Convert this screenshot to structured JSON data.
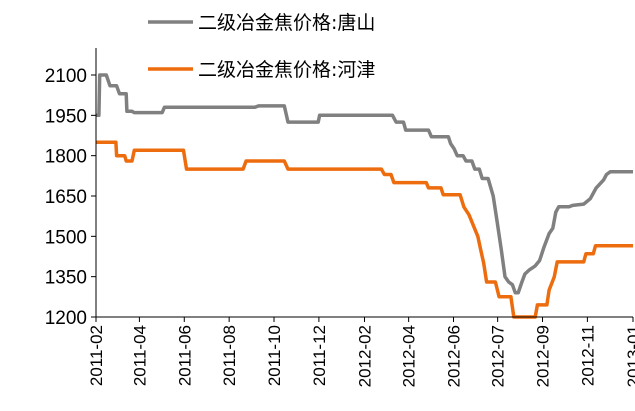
{
  "chart_data": {
    "type": "line",
    "title": "",
    "xlabel": "",
    "ylabel": "",
    "ylim": [
      1200,
      2100
    ],
    "yticks": [
      1200,
      1350,
      1500,
      1650,
      1800,
      1950,
      2100
    ],
    "x_range": [
      "2011-02-01",
      "2013-01-31"
    ],
    "x_ticks": [
      "2011-02",
      "2011-04",
      "2011-06",
      "2011-08",
      "2011-10",
      "2011-12",
      "2012-02",
      "2012-04",
      "2012-06",
      "2012-07",
      "2012-09",
      "2012-11",
      "2013-01"
    ],
    "x_tick_dates": [
      "2011-02-01",
      "2011-04-01",
      "2011-06-01",
      "2011-08-01",
      "2011-10-01",
      "2011-12-01",
      "2012-02-01",
      "2012-04-01",
      "2012-06-01",
      "2012-07-31",
      "2012-09-30",
      "2012-11-30",
      "2013-01-31"
    ],
    "legend_position": "top",
    "grid": false,
    "series": [
      {
        "name": "二级冶金焦价格:唐山",
        "color": "#808080",
        "points": [
          [
            "2011-02-01",
            1950
          ],
          [
            "2011-02-05",
            1950
          ],
          [
            "2011-02-06",
            2100
          ],
          [
            "2011-02-15",
            2100
          ],
          [
            "2011-02-20",
            2060
          ],
          [
            "2011-03-01",
            2060
          ],
          [
            "2011-03-05",
            2030
          ],
          [
            "2011-03-14",
            2030
          ],
          [
            "2011-03-15",
            1965
          ],
          [
            "2011-03-22",
            1965
          ],
          [
            "2011-03-25",
            1960
          ],
          [
            "2011-05-02",
            1960
          ],
          [
            "2011-05-05",
            1980
          ],
          [
            "2011-09-05",
            1980
          ],
          [
            "2011-09-10",
            1985
          ],
          [
            "2011-10-15",
            1985
          ],
          [
            "2011-10-20",
            1925
          ],
          [
            "2011-11-30",
            1925
          ],
          [
            "2011-12-02",
            1950
          ],
          [
            "2012-03-10",
            1950
          ],
          [
            "2012-03-15",
            1925
          ],
          [
            "2012-03-25",
            1925
          ],
          [
            "2012-03-28",
            1895
          ],
          [
            "2012-04-28",
            1895
          ],
          [
            "2012-05-02",
            1870
          ],
          [
            "2012-05-25",
            1870
          ],
          [
            "2012-05-28",
            1845
          ],
          [
            "2012-06-02",
            1825
          ],
          [
            "2012-06-06",
            1800
          ],
          [
            "2012-06-14",
            1800
          ],
          [
            "2012-06-18",
            1780
          ],
          [
            "2012-06-26",
            1780
          ],
          [
            "2012-06-30",
            1750
          ],
          [
            "2012-07-06",
            1750
          ],
          [
            "2012-07-10",
            1715
          ],
          [
            "2012-07-18",
            1715
          ],
          [
            "2012-07-25",
            1650
          ],
          [
            "2012-07-30",
            1560
          ],
          [
            "2012-08-05",
            1450
          ],
          [
            "2012-08-10",
            1350
          ],
          [
            "2012-08-15",
            1330
          ],
          [
            "2012-08-20",
            1320
          ],
          [
            "2012-08-24",
            1290
          ],
          [
            "2012-08-28",
            1290
          ],
          [
            "2012-09-02",
            1330
          ],
          [
            "2012-09-06",
            1360
          ],
          [
            "2012-09-12",
            1375
          ],
          [
            "2012-09-20",
            1390
          ],
          [
            "2012-09-26",
            1410
          ],
          [
            "2012-10-02",
            1460
          ],
          [
            "2012-10-09",
            1510
          ],
          [
            "2012-10-14",
            1530
          ],
          [
            "2012-10-18",
            1590
          ],
          [
            "2012-10-22",
            1610
          ],
          [
            "2012-11-05",
            1610
          ],
          [
            "2012-11-10",
            1615
          ],
          [
            "2012-11-25",
            1620
          ],
          [
            "2012-12-04",
            1640
          ],
          [
            "2012-12-12",
            1680
          ],
          [
            "2012-12-22",
            1710
          ],
          [
            "2012-12-26",
            1730
          ],
          [
            "2012-12-31",
            1740
          ],
          [
            "2013-01-31",
            1740
          ]
        ]
      },
      {
        "name": "二级冶金焦价格:河津",
        "color": "#ED6C0E",
        "points": [
          [
            "2011-02-01",
            1850
          ],
          [
            "2011-02-28",
            1850
          ],
          [
            "2011-03-01",
            1800
          ],
          [
            "2011-03-12",
            1800
          ],
          [
            "2011-03-14",
            1780
          ],
          [
            "2011-03-22",
            1780
          ],
          [
            "2011-03-25",
            1820
          ],
          [
            "2011-05-31",
            1820
          ],
          [
            "2011-06-04",
            1750
          ],
          [
            "2011-08-20",
            1750
          ],
          [
            "2011-08-24",
            1780
          ],
          [
            "2011-10-15",
            1780
          ],
          [
            "2011-10-20",
            1750
          ],
          [
            "2012-02-24",
            1750
          ],
          [
            "2012-02-28",
            1730
          ],
          [
            "2012-03-08",
            1730
          ],
          [
            "2012-03-12",
            1700
          ],
          [
            "2012-04-25",
            1700
          ],
          [
            "2012-04-28",
            1680
          ],
          [
            "2012-05-15",
            1680
          ],
          [
            "2012-05-18",
            1655
          ],
          [
            "2012-06-10",
            1655
          ],
          [
            "2012-06-15",
            1610
          ],
          [
            "2012-06-22",
            1580
          ],
          [
            "2012-06-28",
            1540
          ],
          [
            "2012-07-04",
            1500
          ],
          [
            "2012-07-08",
            1450
          ],
          [
            "2012-07-12",
            1400
          ],
          [
            "2012-07-16",
            1330
          ],
          [
            "2012-07-28",
            1330
          ],
          [
            "2012-08-02",
            1275
          ],
          [
            "2012-08-18",
            1275
          ],
          [
            "2012-08-22",
            1200
          ],
          [
            "2012-09-20",
            1200
          ],
          [
            "2012-09-23",
            1245
          ],
          [
            "2012-10-06",
            1245
          ],
          [
            "2012-10-09",
            1300
          ],
          [
            "2012-10-16",
            1350
          ],
          [
            "2012-10-20",
            1405
          ],
          [
            "2012-11-25",
            1405
          ],
          [
            "2012-11-28",
            1435
          ],
          [
            "2012-12-08",
            1435
          ],
          [
            "2012-12-11",
            1465
          ],
          [
            "2013-01-31",
            1465
          ]
        ]
      }
    ]
  }
}
